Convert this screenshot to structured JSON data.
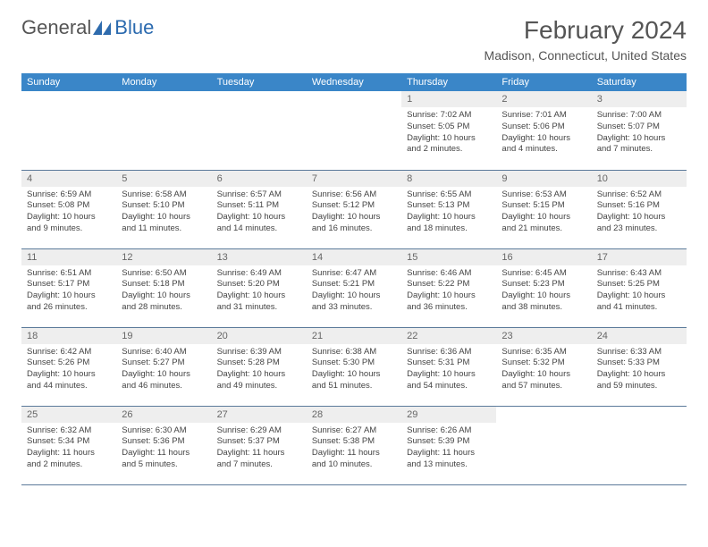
{
  "logo": {
    "text1": "General",
    "text2": "Blue"
  },
  "title": "February 2024",
  "location": "Madison, Connecticut, United States",
  "colors": {
    "headerBg": "#3a86c8",
    "headerText": "#ffffff",
    "dayBg": "#eeeeee",
    "border": "#5b7a9a",
    "bodyText": "#444444"
  },
  "dayHeaders": [
    "Sunday",
    "Monday",
    "Tuesday",
    "Wednesday",
    "Thursday",
    "Friday",
    "Saturday"
  ],
  "weeks": [
    [
      {
        "empty": true
      },
      {
        "empty": true
      },
      {
        "empty": true
      },
      {
        "empty": true
      },
      {
        "num": "1",
        "sunrise": "Sunrise: 7:02 AM",
        "sunset": "Sunset: 5:05 PM",
        "daylight": "Daylight: 10 hours and 2 minutes."
      },
      {
        "num": "2",
        "sunrise": "Sunrise: 7:01 AM",
        "sunset": "Sunset: 5:06 PM",
        "daylight": "Daylight: 10 hours and 4 minutes."
      },
      {
        "num": "3",
        "sunrise": "Sunrise: 7:00 AM",
        "sunset": "Sunset: 5:07 PM",
        "daylight": "Daylight: 10 hours and 7 minutes."
      }
    ],
    [
      {
        "num": "4",
        "sunrise": "Sunrise: 6:59 AM",
        "sunset": "Sunset: 5:08 PM",
        "daylight": "Daylight: 10 hours and 9 minutes."
      },
      {
        "num": "5",
        "sunrise": "Sunrise: 6:58 AM",
        "sunset": "Sunset: 5:10 PM",
        "daylight": "Daylight: 10 hours and 11 minutes."
      },
      {
        "num": "6",
        "sunrise": "Sunrise: 6:57 AM",
        "sunset": "Sunset: 5:11 PM",
        "daylight": "Daylight: 10 hours and 14 minutes."
      },
      {
        "num": "7",
        "sunrise": "Sunrise: 6:56 AM",
        "sunset": "Sunset: 5:12 PM",
        "daylight": "Daylight: 10 hours and 16 minutes."
      },
      {
        "num": "8",
        "sunrise": "Sunrise: 6:55 AM",
        "sunset": "Sunset: 5:13 PM",
        "daylight": "Daylight: 10 hours and 18 minutes."
      },
      {
        "num": "9",
        "sunrise": "Sunrise: 6:53 AM",
        "sunset": "Sunset: 5:15 PM",
        "daylight": "Daylight: 10 hours and 21 minutes."
      },
      {
        "num": "10",
        "sunrise": "Sunrise: 6:52 AM",
        "sunset": "Sunset: 5:16 PM",
        "daylight": "Daylight: 10 hours and 23 minutes."
      }
    ],
    [
      {
        "num": "11",
        "sunrise": "Sunrise: 6:51 AM",
        "sunset": "Sunset: 5:17 PM",
        "daylight": "Daylight: 10 hours and 26 minutes."
      },
      {
        "num": "12",
        "sunrise": "Sunrise: 6:50 AM",
        "sunset": "Sunset: 5:18 PM",
        "daylight": "Daylight: 10 hours and 28 minutes."
      },
      {
        "num": "13",
        "sunrise": "Sunrise: 6:49 AM",
        "sunset": "Sunset: 5:20 PM",
        "daylight": "Daylight: 10 hours and 31 minutes."
      },
      {
        "num": "14",
        "sunrise": "Sunrise: 6:47 AM",
        "sunset": "Sunset: 5:21 PM",
        "daylight": "Daylight: 10 hours and 33 minutes."
      },
      {
        "num": "15",
        "sunrise": "Sunrise: 6:46 AM",
        "sunset": "Sunset: 5:22 PM",
        "daylight": "Daylight: 10 hours and 36 minutes."
      },
      {
        "num": "16",
        "sunrise": "Sunrise: 6:45 AM",
        "sunset": "Sunset: 5:23 PM",
        "daylight": "Daylight: 10 hours and 38 minutes."
      },
      {
        "num": "17",
        "sunrise": "Sunrise: 6:43 AM",
        "sunset": "Sunset: 5:25 PM",
        "daylight": "Daylight: 10 hours and 41 minutes."
      }
    ],
    [
      {
        "num": "18",
        "sunrise": "Sunrise: 6:42 AM",
        "sunset": "Sunset: 5:26 PM",
        "daylight": "Daylight: 10 hours and 44 minutes."
      },
      {
        "num": "19",
        "sunrise": "Sunrise: 6:40 AM",
        "sunset": "Sunset: 5:27 PM",
        "daylight": "Daylight: 10 hours and 46 minutes."
      },
      {
        "num": "20",
        "sunrise": "Sunrise: 6:39 AM",
        "sunset": "Sunset: 5:28 PM",
        "daylight": "Daylight: 10 hours and 49 minutes."
      },
      {
        "num": "21",
        "sunrise": "Sunrise: 6:38 AM",
        "sunset": "Sunset: 5:30 PM",
        "daylight": "Daylight: 10 hours and 51 minutes."
      },
      {
        "num": "22",
        "sunrise": "Sunrise: 6:36 AM",
        "sunset": "Sunset: 5:31 PM",
        "daylight": "Daylight: 10 hours and 54 minutes."
      },
      {
        "num": "23",
        "sunrise": "Sunrise: 6:35 AM",
        "sunset": "Sunset: 5:32 PM",
        "daylight": "Daylight: 10 hours and 57 minutes."
      },
      {
        "num": "24",
        "sunrise": "Sunrise: 6:33 AM",
        "sunset": "Sunset: 5:33 PM",
        "daylight": "Daylight: 10 hours and 59 minutes."
      }
    ],
    [
      {
        "num": "25",
        "sunrise": "Sunrise: 6:32 AM",
        "sunset": "Sunset: 5:34 PM",
        "daylight": "Daylight: 11 hours and 2 minutes."
      },
      {
        "num": "26",
        "sunrise": "Sunrise: 6:30 AM",
        "sunset": "Sunset: 5:36 PM",
        "daylight": "Daylight: 11 hours and 5 minutes."
      },
      {
        "num": "27",
        "sunrise": "Sunrise: 6:29 AM",
        "sunset": "Sunset: 5:37 PM",
        "daylight": "Daylight: 11 hours and 7 minutes."
      },
      {
        "num": "28",
        "sunrise": "Sunrise: 6:27 AM",
        "sunset": "Sunset: 5:38 PM",
        "daylight": "Daylight: 11 hours and 10 minutes."
      },
      {
        "num": "29",
        "sunrise": "Sunrise: 6:26 AM",
        "sunset": "Sunset: 5:39 PM",
        "daylight": "Daylight: 11 hours and 13 minutes."
      },
      {
        "empty": true
      },
      {
        "empty": true
      }
    ]
  ]
}
